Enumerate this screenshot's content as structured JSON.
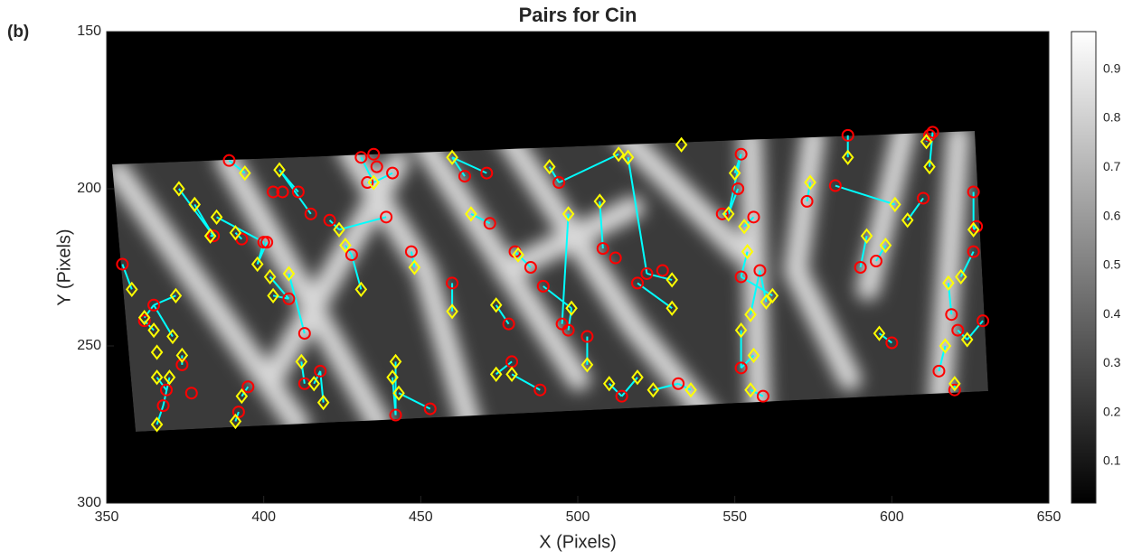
{
  "panel_label": "(b)",
  "chart_data": {
    "type": "scatter",
    "title": "Pairs for Cin",
    "xlabel": "X (Pixels)",
    "ylabel": "Y (Pixels)",
    "xlim": [
      350,
      650
    ],
    "ylim": [
      150,
      300
    ],
    "y_reversed": true,
    "xticks": [
      350,
      400,
      450,
      500,
      550,
      600,
      650
    ],
    "yticks": [
      150,
      200,
      250,
      300
    ],
    "link_color": "#00ffff",
    "series": [
      {
        "marker": "circle",
        "color": "#ff0000",
        "x": [
          355,
          389,
          393,
          401,
          403,
          406,
          411,
          408,
          413,
          415,
          421,
          418,
          413,
          428,
          431,
          435,
          433,
          436,
          441,
          439,
          447,
          442,
          453,
          460,
          464,
          471,
          472,
          480,
          478,
          479,
          485,
          489,
          488,
          494,
          495,
          497,
          503,
          508,
          512,
          519,
          522,
          527,
          514,
          532,
          546,
          552,
          551,
          556,
          552,
          558,
          552,
          559,
          573,
          582,
          586,
          590,
          600,
          612,
          613,
          610,
          626,
          627,
          626,
          619,
          621,
          629,
          615,
          620,
          365,
          362,
          368,
          369,
          374,
          377,
          384,
          395,
          392,
          400,
          595
        ],
        "y": [
          224,
          191,
          216,
          217,
          201,
          201,
          201,
          235,
          246,
          208,
          210,
          258,
          262,
          221,
          190,
          189,
          198,
          193,
          195,
          209,
          220,
          272,
          270,
          230,
          196,
          195,
          211,
          220,
          243,
          255,
          225,
          231,
          264,
          198,
          243,
          245,
          247,
          219,
          222,
          230,
          227,
          226,
          266,
          262,
          208,
          189,
          200,
          209,
          228,
          226,
          257,
          266,
          204,
          199,
          183,
          225,
          249,
          183,
          182,
          203,
          201,
          212,
          220,
          240,
          245,
          242,
          258,
          264,
          237,
          242,
          269,
          264,
          256,
          265,
          215,
          263,
          271,
          217,
          223
        ]
      },
      {
        "marker": "diamond",
        "color": "#ffff00",
        "x": [
          358,
          362,
          365,
          366,
          371,
          366,
          370,
          374,
          366,
          372,
          373,
          378,
          383,
          385,
          391,
          393,
          391,
          394,
          398,
          402,
          403,
          405,
          408,
          412,
          416,
          419,
          424,
          426,
          431,
          435,
          442,
          443,
          441,
          448,
          460,
          460,
          466,
          474,
          474,
          479,
          481,
          491,
          497,
          498,
          503,
          507,
          510,
          513,
          516,
          519,
          524,
          530,
          533,
          536,
          548,
          550,
          553,
          554,
          555,
          556,
          555,
          560,
          562,
          574,
          586,
          592,
          596,
          598,
          601,
          605,
          611,
          612,
          618,
          622,
          617,
          624,
          620,
          626,
          552,
          530
        ],
        "y": [
          232,
          241,
          245,
          252,
          247,
          260,
          260,
          253,
          275,
          234,
          200,
          205,
          215,
          209,
          214,
          266,
          274,
          195,
          224,
          228,
          234,
          194,
          227,
          255,
          262,
          268,
          213,
          218,
          232,
          198,
          255,
          265,
          260,
          225,
          190,
          239,
          208,
          237,
          259,
          259,
          221,
          193,
          208,
          238,
          256,
          204,
          262,
          189,
          190,
          260,
          264,
          238,
          186,
          264,
          208,
          195,
          212,
          220,
          240,
          253,
          264,
          236,
          234,
          198,
          190,
          215,
          246,
          218,
          205,
          210,
          185,
          193,
          230,
          228,
          250,
          248,
          262,
          213,
          245,
          229
        ]
      }
    ],
    "pairs": [
      [
        0,
        0
      ],
      [
        68,
        1
      ],
      [
        69,
        2
      ],
      [
        68,
        4
      ],
      [
        71,
        5
      ],
      [
        70,
        6
      ],
      [
        72,
        7
      ],
      [
        70,
        8
      ],
      [
        68,
        9
      ],
      [
        74,
        10
      ],
      [
        74,
        11
      ],
      [
        74,
        12
      ],
      [
        77,
        13
      ],
      [
        2,
        14
      ],
      [
        75,
        15
      ],
      [
        76,
        16
      ],
      [
        1,
        17
      ],
      [
        77,
        18
      ],
      [
        7,
        19
      ],
      [
        7,
        20
      ],
      [
        6,
        21
      ],
      [
        8,
        22
      ],
      [
        12,
        23
      ],
      [
        11,
        24
      ],
      [
        11,
        25
      ],
      [
        10,
        26
      ],
      [
        13,
        27
      ],
      [
        13,
        28
      ],
      [
        16,
        29
      ],
      [
        21,
        30
      ],
      [
        22,
        31
      ],
      [
        21,
        32
      ],
      [
        20,
        33
      ],
      [
        25,
        34
      ],
      [
        23,
        35
      ],
      [
        26,
        36
      ],
      [
        28,
        37
      ],
      [
        29,
        38
      ],
      [
        32,
        39
      ],
      [
        27,
        40
      ],
      [
        33,
        41
      ],
      [
        34,
        42
      ],
      [
        35,
        43
      ],
      [
        36,
        44
      ],
      [
        37,
        45
      ],
      [
        42,
        46
      ],
      [
        33,
        47
      ],
      [
        40,
        48
      ],
      [
        42,
        49
      ],
      [
        43,
        50
      ],
      [
        39,
        51
      ],
      [
        43,
        53
      ],
      [
        40,
        79
      ],
      [
        44,
        54
      ],
      [
        45,
        55
      ],
      [
        47,
        56
      ],
      [
        48,
        57
      ],
      [
        49,
        58
      ],
      [
        50,
        59
      ],
      [
        51,
        60
      ],
      [
        49,
        61
      ],
      [
        48,
        62
      ],
      [
        52,
        63
      ],
      [
        54,
        64
      ],
      [
        55,
        65
      ],
      [
        56,
        66
      ],
      [
        78,
        67
      ],
      [
        53,
        68
      ],
      [
        59,
        69
      ],
      [
        57,
        70
      ],
      [
        58,
        71
      ],
      [
        63,
        72
      ],
      [
        62,
        73
      ],
      [
        66,
        74
      ],
      [
        64,
        75
      ],
      [
        67,
        76
      ],
      [
        60,
        77
      ],
      [
        50,
        78
      ],
      [
        30,
        40
      ],
      [
        31,
        43
      ],
      [
        24,
        34
      ],
      [
        18,
        29
      ],
      [
        19,
        26
      ],
      [
        14,
        29
      ],
      [
        9,
        21
      ],
      [
        3,
        18
      ],
      [
        45,
        54
      ],
      [
        46,
        54
      ],
      [
        65,
        75
      ],
      [
        61,
        77
      ]
    ],
    "colorbar": {
      "colormap": "gray",
      "clim": [
        0.015,
        0.977
      ],
      "ticks": [
        0.1,
        0.2,
        0.3,
        0.4,
        0.5,
        0.6,
        0.7,
        0.8,
        0.9
      ]
    }
  }
}
